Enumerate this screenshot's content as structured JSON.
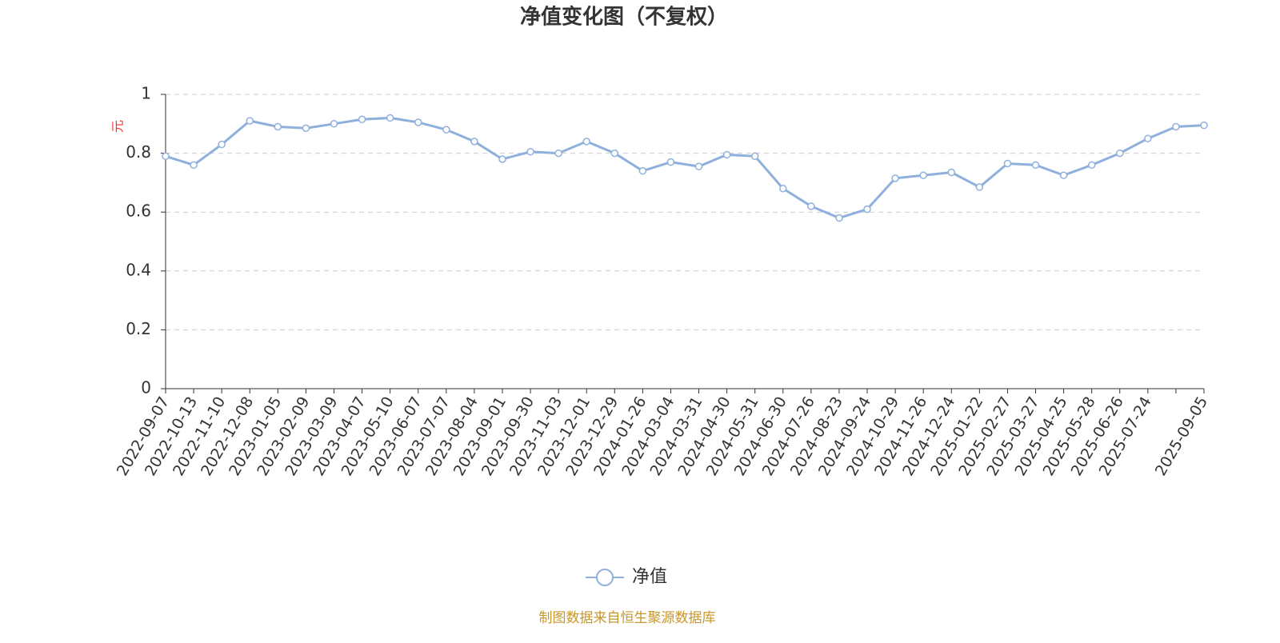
{
  "chart_data": {
    "type": "line",
    "title": "净值变化图（不复权）",
    "y_label": "元",
    "categories": [
      "2022-09-07",
      "2022-10-13",
      "2022-11-10",
      "2022-12-08",
      "2023-01-05",
      "2023-02-09",
      "2023-03-09",
      "2023-04-07",
      "2023-05-10",
      "2023-06-07",
      "2023-07-07",
      "2023-08-04",
      "2023-09-01",
      "2023-09-30",
      "2023-11-03",
      "2023-12-01",
      "2023-12-29",
      "2024-01-26",
      "2024-03-04",
      "2024-03-31",
      "2024-04-30",
      "2024-05-31",
      "2024-06-30",
      "2024-07-26",
      "2024-08-23",
      "2024-09-24",
      "2024-10-29",
      "2024-11-26",
      "2024-12-24",
      "2025-01-22",
      "2025-02-27",
      "2025-03-27",
      "2025-04-25",
      "2025-05-28",
      "2025-06-26",
      "2025-07-24",
      null,
      "2025-09-05"
    ],
    "series": [
      {
        "name": "净值",
        "color": "#8fb0dc",
        "values": [
          0.79,
          0.76,
          0.83,
          0.91,
          0.89,
          0.885,
          0.9,
          0.915,
          0.92,
          0.905,
          0.88,
          0.84,
          0.78,
          0.805,
          0.8,
          0.84,
          0.8,
          0.74,
          0.77,
          0.755,
          0.795,
          0.79,
          0.68,
          0.62,
          0.58,
          0.61,
          0.715,
          0.725,
          0.735,
          0.685,
          0.765,
          0.76,
          0.725,
          0.76,
          0.8,
          0.85,
          0.89,
          0.895
        ]
      }
    ],
    "ylim": [
      0,
      1
    ],
    "yticks": [
      0,
      0.2,
      0.4,
      0.6,
      0.8,
      1
    ],
    "grid": true,
    "legend": "bottom",
    "source": "制图数据来自恒生聚源数据库"
  }
}
